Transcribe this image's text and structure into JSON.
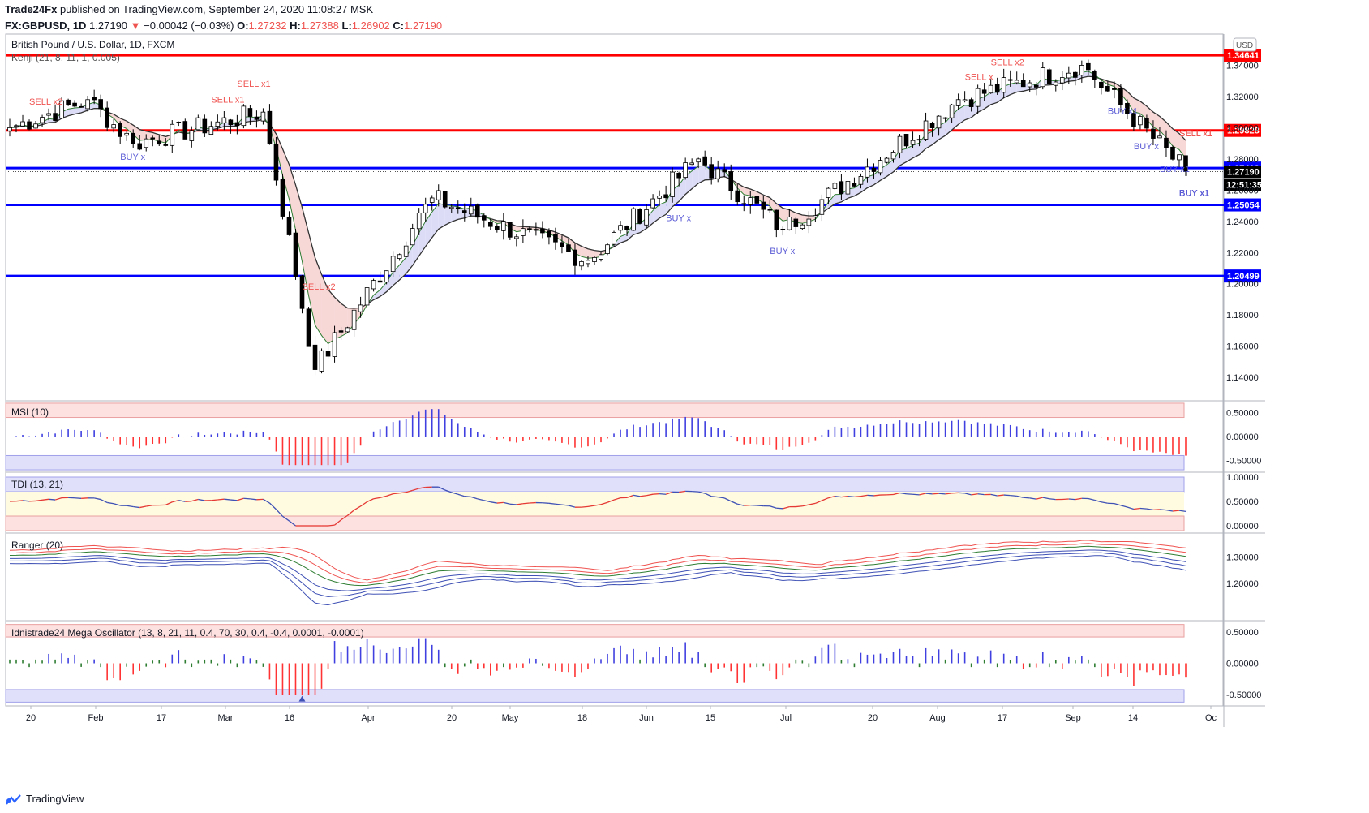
{
  "header": {
    "line1_user": "Trade24Fx",
    "line1_rest": "published on TradingView.com, September 24, 2020 11:08:27 MSK",
    "symbol": "FX:GBPUSD, 1D",
    "last": "1.27190",
    "change": "−0.00042 (−0.03%)",
    "o_label": "O:",
    "o": "1.27232",
    "h_label": "H:",
    "h": "1.27388",
    "l_label": "L:",
    "l": "1.26902",
    "c_label": "C:",
    "c": "1.27190",
    "down_arrow": "▼"
  },
  "footer": {
    "brand": "TradingView",
    "icon": "tradingview-logo"
  },
  "colors": {
    "up": "#ffffff",
    "down": "#000000",
    "red_line": "#ff0000",
    "blue_line": "#0000ff",
    "sell_text": "#ef5350",
    "buy_text": "#5b5bd6",
    "pos_hist": "#4040e0",
    "neg_hist": "#ff3333"
  },
  "chart_data": [
    {
      "type": "candlestick",
      "title": "British Pound / U.S. Dollar, 1D, FXCM",
      "indicator": "Kenji (21, 8, 11, 1, 0.005)",
      "currency_badge": "USD",
      "ylim": [
        1.125,
        1.36
      ],
      "y_ticks": [
        "1.34000",
        "1.32000",
        "1.30000",
        "1.28000",
        "1.26000",
        "1.24000",
        "1.22000",
        "1.20000",
        "1.18000",
        "1.16000",
        "1.14000"
      ],
      "x_ticks": [
        "20",
        "Feb",
        "17",
        "Mar",
        "16",
        "Apr",
        "20",
        "May",
        "18",
        "Jun",
        "15",
        "Jul",
        "20",
        "Aug",
        "17",
        "Sep",
        "14",
        "Oc"
      ],
      "levels": [
        {
          "value": 1.34641,
          "label": "1.34641",
          "color": "red"
        },
        {
          "value": 1.29828,
          "label": "1.29828",
          "color": "red"
        },
        {
          "value": 1.27413,
          "label": "1.27413",
          "color": "blue"
        },
        {
          "value": 1.25054,
          "label": "1.25054",
          "color": "blue"
        },
        {
          "value": 1.20499,
          "label": "1.20499",
          "color": "blue"
        }
      ],
      "last_price_label": "1.27190",
      "countdown_label": "12:51:35",
      "key_points": [
        {
          "date": "Jan 14",
          "close": 1.3
        },
        {
          "date": "Jan 31",
          "close": 1.318
        },
        {
          "date": "Feb 10",
          "close": 1.29
        },
        {
          "date": "Mar 09",
          "close": 1.31
        },
        {
          "date": "Mar 20",
          "close": 1.145
        },
        {
          "date": "Apr 14",
          "close": 1.255
        },
        {
          "date": "May 18",
          "close": 1.215
        },
        {
          "date": "Jun 10",
          "close": 1.28
        },
        {
          "date": "Jun 29",
          "close": 1.235
        },
        {
          "date": "Aug 05",
          "close": 1.318
        },
        {
          "date": "Sep 01",
          "close": 1.34
        },
        {
          "date": "Sep 23",
          "close": 1.2719
        }
      ],
      "signals": [
        "SELL x2",
        "SELL x1",
        "SELL x1",
        "SELL x2",
        "BUY x",
        "BUY x",
        "BUY x",
        "SELL x2",
        "SELL x",
        "BUY x1",
        "BUY x",
        "BUY x1",
        "BUY x",
        "BUY x1",
        "BUY x1",
        "BUY x",
        "BUY x1",
        "BUY x",
        "SELL x1",
        "SELL x1"
      ]
    },
    {
      "type": "bar",
      "title": "MSI (10)",
      "ylim": [
        -0.75,
        0.75
      ],
      "y_ticks": [
        "0.50000",
        "0.00000",
        "-0.50000"
      ]
    },
    {
      "type": "line",
      "title": "TDI (13, 21)",
      "ylim": [
        -0.15,
        1.1
      ],
      "y_ticks": [
        "1.00000",
        "0.50000",
        "0.00000"
      ]
    },
    {
      "type": "line",
      "title": "Ranger (20)",
      "ylim": [
        1.06,
        1.39
      ],
      "y_ticks": [
        "1.30000",
        "1.20000"
      ]
    },
    {
      "type": "bar",
      "title": "Idnistrade24 Mega Oscillator (13, 8, 21, 11, 0.4, 70, 30, 0.4, -0.4, 0.0001, -0.0001)",
      "ylim": [
        -0.68,
        0.68
      ],
      "y_ticks": [
        "0.50000",
        "0.00000",
        "-0.50000"
      ]
    }
  ]
}
